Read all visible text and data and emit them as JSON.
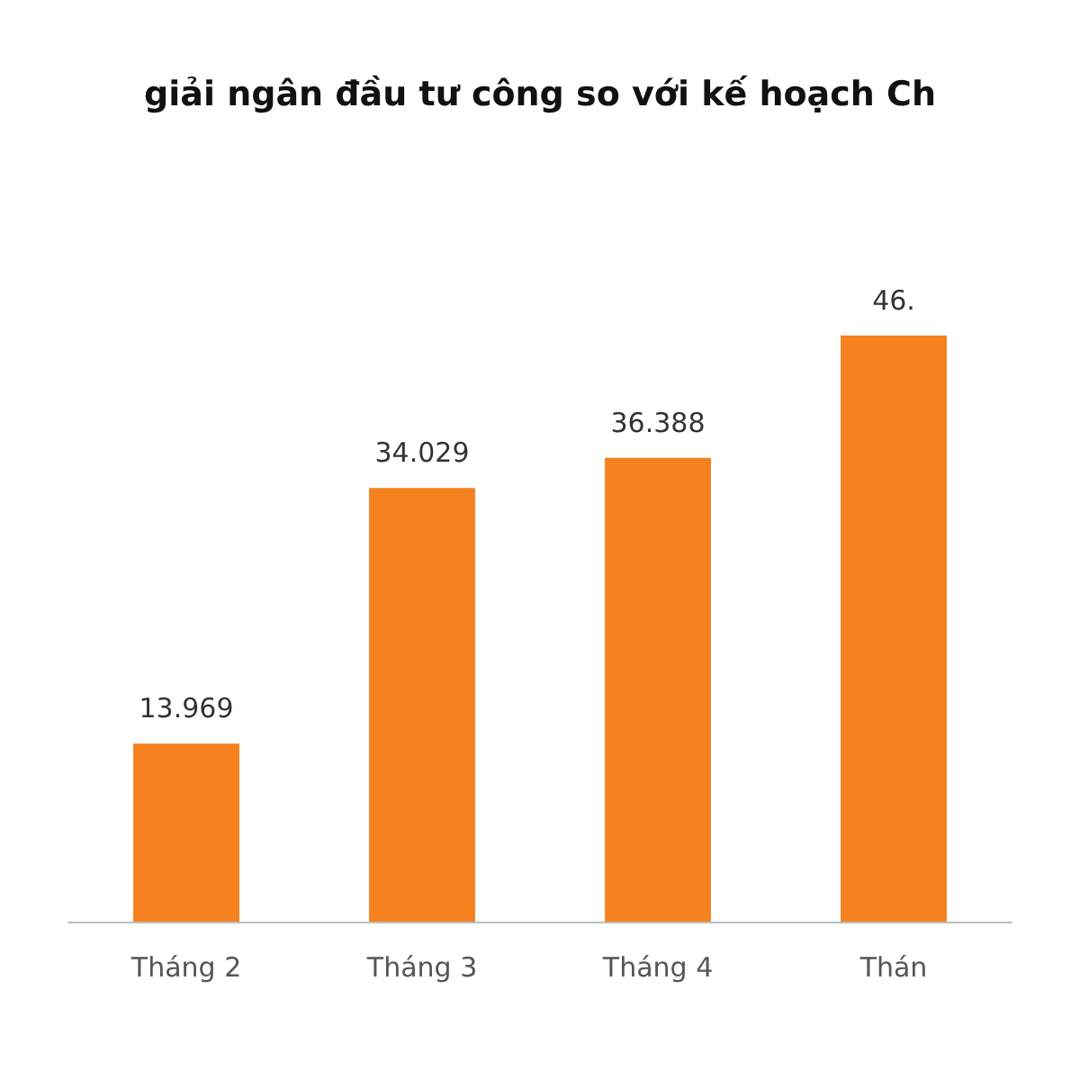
{
  "chart_data": {
    "type": "bar",
    "title": "giải ngân đầu tư công so với kế hoạch Ch",
    "categories": [
      "Tháng 2",
      "Tháng 3",
      "Tháng 4",
      "Thán"
    ],
    "values": [
      13.969,
      34.029,
      36.388,
      46
    ],
    "value_labels": [
      "13.969",
      "34.029",
      "36.388",
      "46."
    ],
    "color": "#f5821f"
  }
}
